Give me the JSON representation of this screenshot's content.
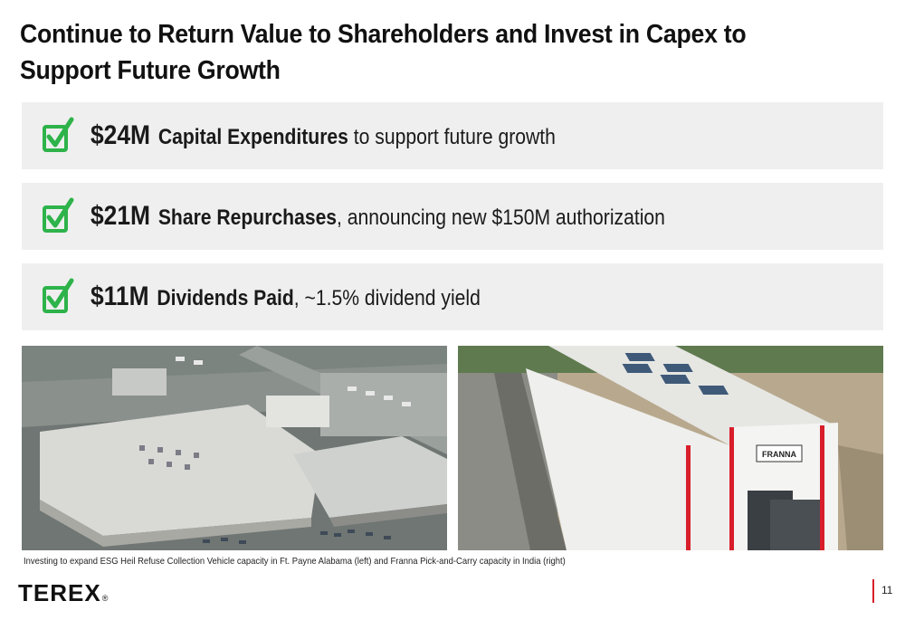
{
  "title": {
    "line1": "Continue to Return Value to Shareholders and Invest in Capex to",
    "line2": "Support Future Growth"
  },
  "items": [
    {
      "amount": "$24M",
      "label": "Capital Expenditures",
      "rest": " to support future growth"
    },
    {
      "amount": "$21M",
      "label": "Share Repurchases",
      "rest": ", announcing new $150M authorization"
    },
    {
      "amount": "$11M",
      "label": "Dividends Paid",
      "rest": ", ~1.5% dividend yield"
    }
  ],
  "photos": {
    "left_icon": "aerial-factory-photo",
    "right_icon": "factory-building-photo",
    "right_sign": "FRANNA"
  },
  "caption": "Investing to expand ESG Heil Refuse Collection Vehicle capacity in Ft. Payne Alabama (left) and Franna Pick-and-Carry capacity in India (right)",
  "footer": {
    "logo": "TEREX",
    "reg": "®",
    "page_number": "11"
  },
  "colors": {
    "check_green": "#2db34a",
    "accent_red": "#d81e2a",
    "card_bg": "#efefef"
  }
}
